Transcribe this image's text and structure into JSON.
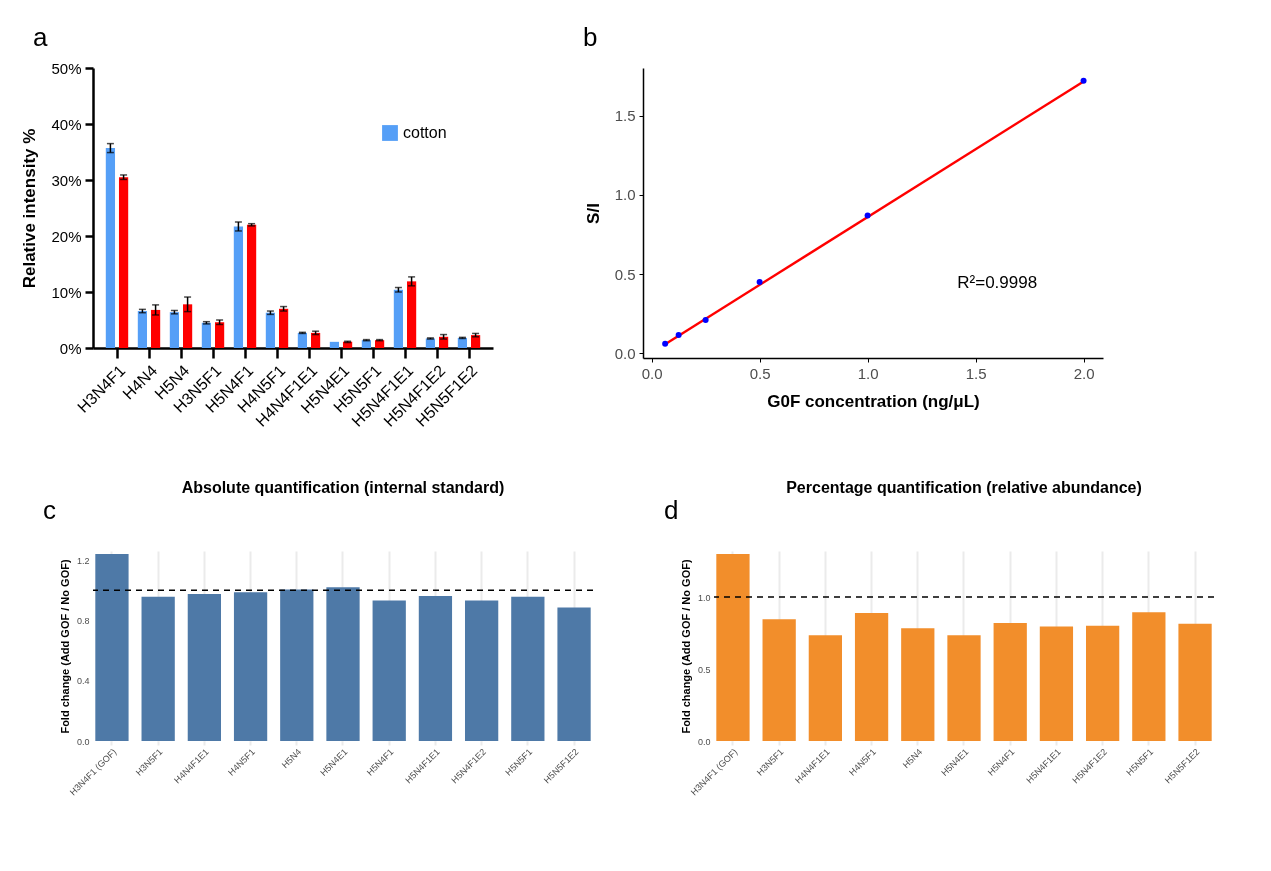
{
  "chart_data": [
    {
      "type": "bar",
      "ylabel": "Relative intensity %",
      "annotations": [
        "a"
      ],
      "legend": "top right",
      "categories": [
        "H3N4F1",
        "H4N4",
        "H5N4",
        "H3N5F1",
        "H5N4F1",
        "H4N5F1",
        "H4N4F1E1",
        "H5N4E1",
        "H5N5F1",
        "H5N4F1E1",
        "H5N4F1E2",
        "H5N5F1E2"
      ],
      "series": [
        {
          "name": "cotton",
          "color": "#559ff7",
          "values": [
            35.7,
            6.6,
            6.4,
            4.5,
            21.7,
            6.3,
            2.7,
            1.1,
            1.4,
            10.4,
            1.7,
            1.8
          ],
          "errors": [
            0.8,
            0.3,
            0.3,
            0.2,
            0.8,
            0.3,
            0.1,
            null,
            0.1,
            0.4,
            0.1,
            0.1
          ]
        },
        {
          "color": "#ff0000",
          "values": [
            30.5,
            6.8,
            7.8,
            4.6,
            22.0,
            7.0,
            2.7,
            1.1,
            1.4,
            11.9,
            2.0,
            2.3
          ],
          "errors": [
            0.4,
            0.9,
            1.3,
            0.4,
            0.2,
            0.4,
            0.3,
            0.1,
            0.1,
            0.8,
            0.4,
            0.3
          ]
        }
      ],
      "ylim": [
        0,
        50
      ],
      "yticks": [
        {
          "value": 0,
          "label": "0%"
        },
        {
          "value": 10,
          "label": "10%"
        },
        {
          "value": 20,
          "label": "20%"
        },
        {
          "value": 30,
          "label": "30%"
        },
        {
          "value": 40,
          "label": "40%"
        },
        {
          "value": 50,
          "label": "50%"
        }
      ]
    },
    {
      "type": "scatter",
      "xlabel": "G0F concentration (ng/μL)",
      "ylabel": "S/I",
      "annotations": [
        "b",
        "R²=0.9998"
      ],
      "series": [
        {
          "type": "scatter",
          "marker": "circle",
          "color": "#0000ff",
          "x": [
            0.0625,
            0.125,
            0.25,
            0.5,
            1,
            2
          ],
          "values": [
            0.06,
            0.115,
            0.21,
            0.45,
            0.87,
            1.72
          ]
        },
        {
          "type": "line",
          "color": "#ff0000",
          "x": [
            0.0625,
            2
          ],
          "values": [
            0.057,
            1.715
          ]
        }
      ],
      "xlim": [
        -0.04,
        2.09
      ],
      "xticks": [
        {
          "value": 0,
          "label": "0.0"
        },
        {
          "value": 0.5,
          "label": "0.5"
        },
        {
          "value": 1,
          "label": "1.0"
        },
        {
          "value": 1.5,
          "label": "1.5"
        },
        {
          "value": 2,
          "label": "2.0"
        }
      ],
      "ylim": [
        -0.03,
        1.8
      ],
      "yticks": [
        {
          "value": 0,
          "label": "0.0"
        },
        {
          "value": 0.5,
          "label": "0.5"
        },
        {
          "value": 1,
          "label": "1.0"
        },
        {
          "value": 1.5,
          "label": "1.5"
        }
      ]
    },
    {
      "type": "bar",
      "title": "Absolute quantification (internal standard)",
      "ylabel": "Fold change (Add GOF / No GOF)",
      "annotations": [
        "c"
      ],
      "grid": "x",
      "categories": [
        "H3N4F1 (GOF)",
        "H3N5F1",
        "H4N4F1E1",
        "H4N5F1",
        "H5N4",
        "H5N4E1",
        "H5N4F1",
        "H5N4F1E1",
        "H5N4F1E2",
        "H5N5F1",
        "H5N5F1E2"
      ],
      "series": [
        {
          "color": "#4e79a7",
          "values": [
            1.24,
            0.957,
            0.975,
            0.987,
            1.004,
            1.019,
            0.932,
            0.962,
            0.932,
            0.957,
            0.885
          ]
        }
      ],
      "ylim": [
        0,
        1.26
      ],
      "yticks": [
        {
          "value": 0,
          "label": "0.0"
        },
        {
          "value": 0.4,
          "label": "0.4"
        },
        {
          "value": 0.8,
          "label": "0.8"
        },
        {
          "value": 1.2,
          "label": "1.2"
        }
      ],
      "ref_lines": [
        {
          "axis": "y",
          "value": 1,
          "color": "#000000",
          "line_style": "dashed"
        }
      ]
    },
    {
      "type": "bar",
      "title": "Percentage quantification (relative abundance)",
      "ylabel": "Fold change (Add GOF / No GOF)",
      "annotations": [
        "d"
      ],
      "grid": "x",
      "categories": [
        "H3N4F1 (GOF)",
        "H3N5F1",
        "H4N4F1E1",
        "H4N5F1",
        "H5N4",
        "H5N4E1",
        "H5N4F1",
        "H5N4F1E1",
        "H5N4F1E2",
        "H5N5F1",
        "H5N5F1E2"
      ],
      "series": [
        {
          "color": "#f28e2b",
          "values": [
            1.3,
            0.845,
            0.735,
            0.89,
            0.783,
            0.735,
            0.82,
            0.795,
            0.8,
            0.895,
            0.815
          ]
        }
      ],
      "ylim": [
        0,
        1.32
      ],
      "yticks": [
        {
          "value": 0,
          "label": "0.0"
        },
        {
          "value": 0.5,
          "label": "0.5"
        },
        {
          "value": 1,
          "label": "1.0"
        }
      ],
      "ref_lines": [
        {
          "axis": "y",
          "value": 1,
          "color": "#000000",
          "line_style": "dashed"
        }
      ]
    }
  ]
}
